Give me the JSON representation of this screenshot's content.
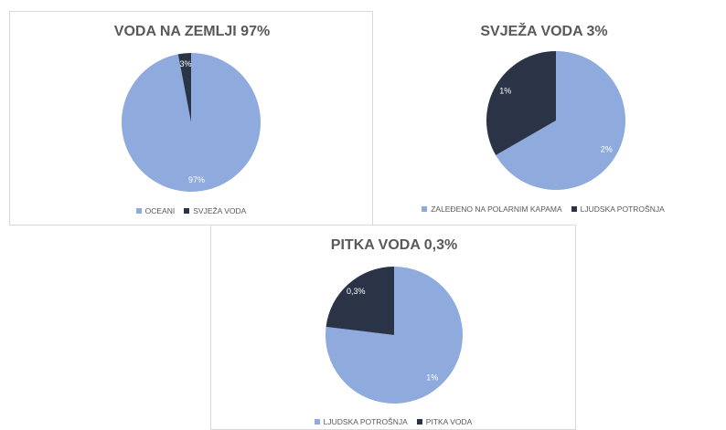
{
  "chart_data": [
    {
      "type": "pie",
      "title": "VODA NA ZEMLJI 97%",
      "categories": [
        "OCEANI",
        "SVJEŽA VODA"
      ],
      "values": [
        97,
        3
      ],
      "value_labels": [
        "97%",
        "3%"
      ],
      "colors": [
        "#8faadc",
        "#2b3447"
      ]
    },
    {
      "type": "pie",
      "title": "SVJEŽA VODA 3%",
      "categories": [
        "ZALEĐENO NA POLARNIM KAPAMA",
        "LJUDSKA POTROŠNJA"
      ],
      "values": [
        2,
        1
      ],
      "value_labels": [
        "2%",
        "1%"
      ],
      "colors": [
        "#8faadc",
        "#2b3447"
      ]
    },
    {
      "type": "pie",
      "title": "PITKA VODA 0,3%",
      "categories": [
        "LJUDSKA POTROŠNJA",
        "PITKA VODA"
      ],
      "values": [
        1,
        0.3
      ],
      "value_labels": [
        "1%",
        "0,3%"
      ],
      "colors": [
        "#8faadc",
        "#2b3447"
      ]
    }
  ]
}
